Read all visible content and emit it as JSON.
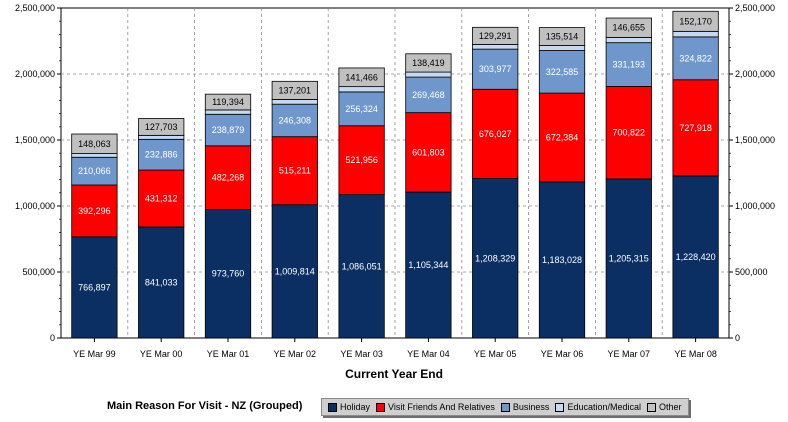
{
  "chart_data": {
    "type": "bar",
    "stacked": true,
    "xlabel": "Current Year End",
    "ylabel": "",
    "ylim": [
      0,
      2500000
    ],
    "yticks": [
      "0",
      "500,000",
      "1,000,000",
      "1,500,000",
      "2,000,000",
      "2,500,000"
    ],
    "yticks_right": [
      "0",
      "500,000",
      "1,000,000",
      "1,500,000",
      "2,000,000",
      "2,500,000"
    ],
    "grid": true,
    "categories": [
      "YE Mar 99",
      "YE Mar 00",
      "YE Mar 01",
      "YE Mar 02",
      "YE Mar 03",
      "YE Mar 04",
      "YE Mar 05",
      "YE Mar 06",
      "YE Mar 07",
      "YE Mar 08"
    ],
    "series": [
      {
        "name": "Holiday",
        "color": "#0b2f63",
        "label_color": "#ffffff",
        "values": [
          766897,
          841033,
          973760,
          1009814,
          1086051,
          1105344,
          1208329,
          1183028,
          1205315,
          1228420
        ],
        "labels": [
          "766,897",
          "841,033",
          "973,760",
          "1,009,814",
          "1,086,051",
          "1,105,344",
          "1,208,329",
          "1,183,028",
          "1,205,315",
          "1,228,420"
        ]
      },
      {
        "name": "Visit Friends And Relatives",
        "color": "#ff0000",
        "label_color": "#ffffff",
        "values": [
          392296,
          431312,
          482268,
          515211,
          521956,
          601803,
          676027,
          672384,
          700822,
          727918
        ],
        "labels": [
          "392,296",
          "431,312",
          "482,268",
          "515,211",
          "521,956",
          "601,803",
          "676,027",
          "672,384",
          "700,822",
          "727,918"
        ]
      },
      {
        "name": "Business",
        "color": "#6f97cc",
        "label_color": "#ffffff",
        "values": [
          210066,
          232886,
          238879,
          246308,
          256324,
          269468,
          303977,
          322585,
          331193,
          324822
        ],
        "labels": [
          "210,066",
          "232,886",
          "238,879",
          "246,308",
          "256,324",
          "269,468",
          "303,977",
          "322,585",
          "331,193",
          "324,822"
        ]
      },
      {
        "name": "Education/Medical",
        "color": "#c6d9f1",
        "label_color": "#000000",
        "values": [
          28000,
          30000,
          33000,
          36000,
          40000,
          38000,
          36000,
          38000,
          40000,
          42000
        ],
        "labels": []
      },
      {
        "name": "Other",
        "color": "#c0c0c0",
        "label_color": "#000000",
        "values": [
          148063,
          127703,
          119394,
          137201,
          141466,
          138419,
          129291,
          135514,
          146655,
          152170
        ],
        "labels": [
          "148,063",
          "127,703",
          "119,394",
          "137,201",
          "141,466",
          "138,419",
          "129,291",
          "135,514",
          "146,655",
          "152,170"
        ]
      }
    ]
  },
  "legend": {
    "title": "Main Reason For Visit - NZ (Grouped)",
    "items": [
      "Holiday",
      "Visit Friends And Relatives",
      "Business",
      "Education/Medical",
      "Other"
    ]
  }
}
